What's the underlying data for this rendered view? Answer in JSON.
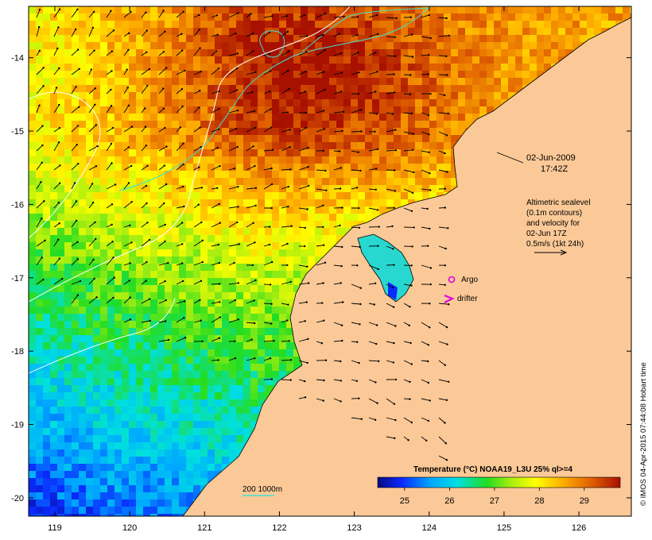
{
  "map": {
    "lon_ticks": [
      "119",
      "120",
      "121",
      "122",
      "123",
      "124",
      "125",
      "126"
    ],
    "lat_ticks": [
      "-14",
      "-15",
      "-16",
      "-17",
      "-18",
      "-19",
      "-20"
    ],
    "lon_range": [
      118.65,
      126.7
    ],
    "lat_range": [
      -20.25,
      -13.3
    ]
  },
  "annotations": {
    "date": "02-Jun-2009",
    "time": "17:42Z",
    "info_lines": [
      "Altimetric sealevel",
      "(0.1m contours)",
      "and velocity for",
      "02-Jun 17Z",
      "0.5m/s (1kt 24h)"
    ],
    "argo_label": "Argo",
    "drifter_label": "drifter",
    "isobath_label": "200  1000m"
  },
  "colorbar": {
    "title": "Temperature (°C) NOAA19_L3U 25% ql>=4",
    "ticks": [
      "25",
      "26",
      "27",
      "28",
      "29"
    ],
    "range": [
      24.4,
      29.8
    ]
  },
  "credit": "© IMOS 04-Apr-2015 07:44:08 Hobart time",
  "colors": {
    "land": "#fbc997",
    "argo": "#e000e0",
    "drifter": "#e000e0",
    "isobath": "#40e0d0"
  }
}
